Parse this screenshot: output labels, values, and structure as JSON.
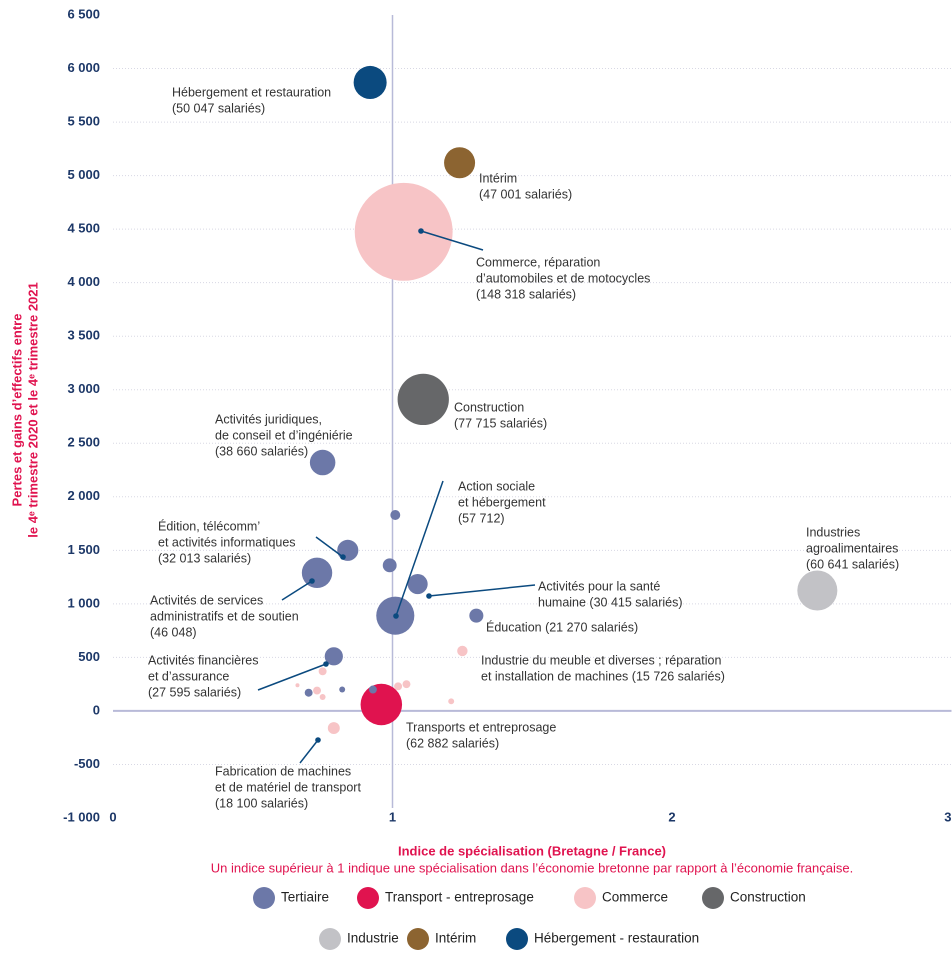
{
  "chart_data": {
    "type": "bubble",
    "y_label": [
      "Pertes et gains d’effectifs entre",
      "le 4ᵉ trimestre 2020 et le 4ᵉ trimestre 2021"
    ],
    "x_label": "Indice de spécialisation (Bretagne / France)",
    "note": "Un indice supérieur à 1 indique une spécialisation dans l’économie bretonne par rapport à l’économie française.",
    "xlim": [
      0,
      3
    ],
    "xticks": [
      0,
      1,
      2,
      3
    ],
    "ylim": [
      -1000,
      6500
    ],
    "yticks": [
      {
        "value": -1000,
        "label": "-1 000"
      },
      -500,
      0,
      500,
      {
        "value": 1000,
        "label": "1 000"
      },
      {
        "value": 1500,
        "label": "1 500"
      },
      {
        "value": 2000,
        "label": "2 000"
      },
      {
        "value": 2500,
        "label": "2 500"
      },
      {
        "value": 3000,
        "label": "3 000"
      },
      {
        "value": 3500,
        "label": "3 500"
      },
      {
        "value": 4000,
        "label": "4 000"
      },
      {
        "value": 4500,
        "label": "4 500"
      },
      {
        "value": 5000,
        "label": "5 000"
      },
      {
        "value": 5500,
        "label": "5 500"
      },
      {
        "value": 6000,
        "label": "6 000"
      },
      {
        "value": 6500,
        "label": "6 500"
      }
    ],
    "grid": true,
    "series": [
      {
        "name": "Tertiaire",
        "color": "#6c78a8",
        "x": [
          0.75,
          0.84,
          0.73,
          1.01,
          1.09,
          1.3,
          0.79,
          1.01,
          0.99,
          0.7,
          0.82,
          0.93
        ],
        "values": [
          2320,
          1500,
          1290,
          890,
          1185,
          890,
          510,
          1830,
          1360,
          170,
          200,
          200
        ],
        "sizes": [
          38660,
          32013,
          46048,
          57712,
          30415,
          21270,
          27595,
          15000,
          21000,
          12000,
          9000,
          12000
        ],
        "labels": [
          [
            "Activités juridiques,",
            "de conseil et d’ingéniérie",
            "(38 660 salariés)"
          ],
          [
            "Édition, télécomm’",
            "et activités informatiques",
            "(32 013 salariés)"
          ],
          [
            "Activités de services",
            "administratifs et de soutien",
            "(46 048)"
          ],
          [
            "Action sociale",
            "et hébergement",
            "(57 712)"
          ],
          [
            "Activités pour la santé",
            "humaine (30 415 salariés)"
          ],
          [
            "Éducation (21 270 salariés)"
          ],
          [
            "Activités financières",
            "et d’assurance",
            "(27 595 salariés)"
          ],
          null,
          null,
          null,
          null,
          null
        ]
      },
      {
        "name": "Transport - entreprosage",
        "color": "#e0134f",
        "x": [
          0.96
        ],
        "values": [
          60
        ],
        "sizes": [
          62882
        ],
        "labels": [
          [
            "Transports et entreprosage",
            "(62 882 salariés)"
          ]
        ]
      },
      {
        "name": "Commerce",
        "color": "#f7c4c6",
        "x": [
          1.04,
          1.25,
          0.79,
          0.75,
          0.73,
          0.66,
          1.02,
          1.05,
          1.21,
          0.75
        ],
        "values": [
          4475,
          560,
          -160,
          370,
          190,
          240,
          230,
          250,
          90,
          130
        ],
        "sizes": [
          148318,
          15726,
          18100,
          12000,
          12000,
          6000,
          12000,
          12000,
          9000,
          9000
        ],
        "labels": [
          [
            "Commerce, réparation",
            "d’automobiles et de motocycles",
            "(148 318 salariés)"
          ],
          [
            "Industrie du meuble et diverses ; réparation",
            "et installation de machines (15 726 salariés)"
          ],
          [
            "Fabrication de machines",
            "et de matériel de transport",
            "(18 100 salariés)"
          ],
          null,
          null,
          null,
          null,
          null,
          null,
          null
        ]
      },
      {
        "name": "Construction",
        "color": "#666769",
        "x": [
          1.11
        ],
        "values": [
          2910
        ],
        "sizes": [
          77715
        ],
        "labels": [
          [
            "Construction",
            "(77 715 salariés)"
          ]
        ]
      },
      {
        "name": "Industrie",
        "color": "#c2c2c6",
        "x": [
          2.52
        ],
        "values": [
          1125
        ],
        "sizes": [
          60641
        ],
        "labels": [
          [
            "Industries",
            "agroalimentaires",
            "(60 641 salariés)"
          ]
        ]
      },
      {
        "name": "Intérim",
        "color": "#8c6431",
        "x": [
          1.24
        ],
        "values": [
          5120
        ],
        "sizes": [
          47001
        ],
        "labels": [
          [
            "Intérim",
            "(47 001 salariés)"
          ]
        ]
      },
      {
        "name": "Hébergement - restauration",
        "color": "#0b4a7f",
        "x": [
          0.92
        ],
        "values": [
          5870
        ],
        "sizes": [
          50047
        ],
        "labels": [
          [
            "Hébergement et restauration",
            "(50 047 salariés)"
          ]
        ]
      }
    ]
  }
}
